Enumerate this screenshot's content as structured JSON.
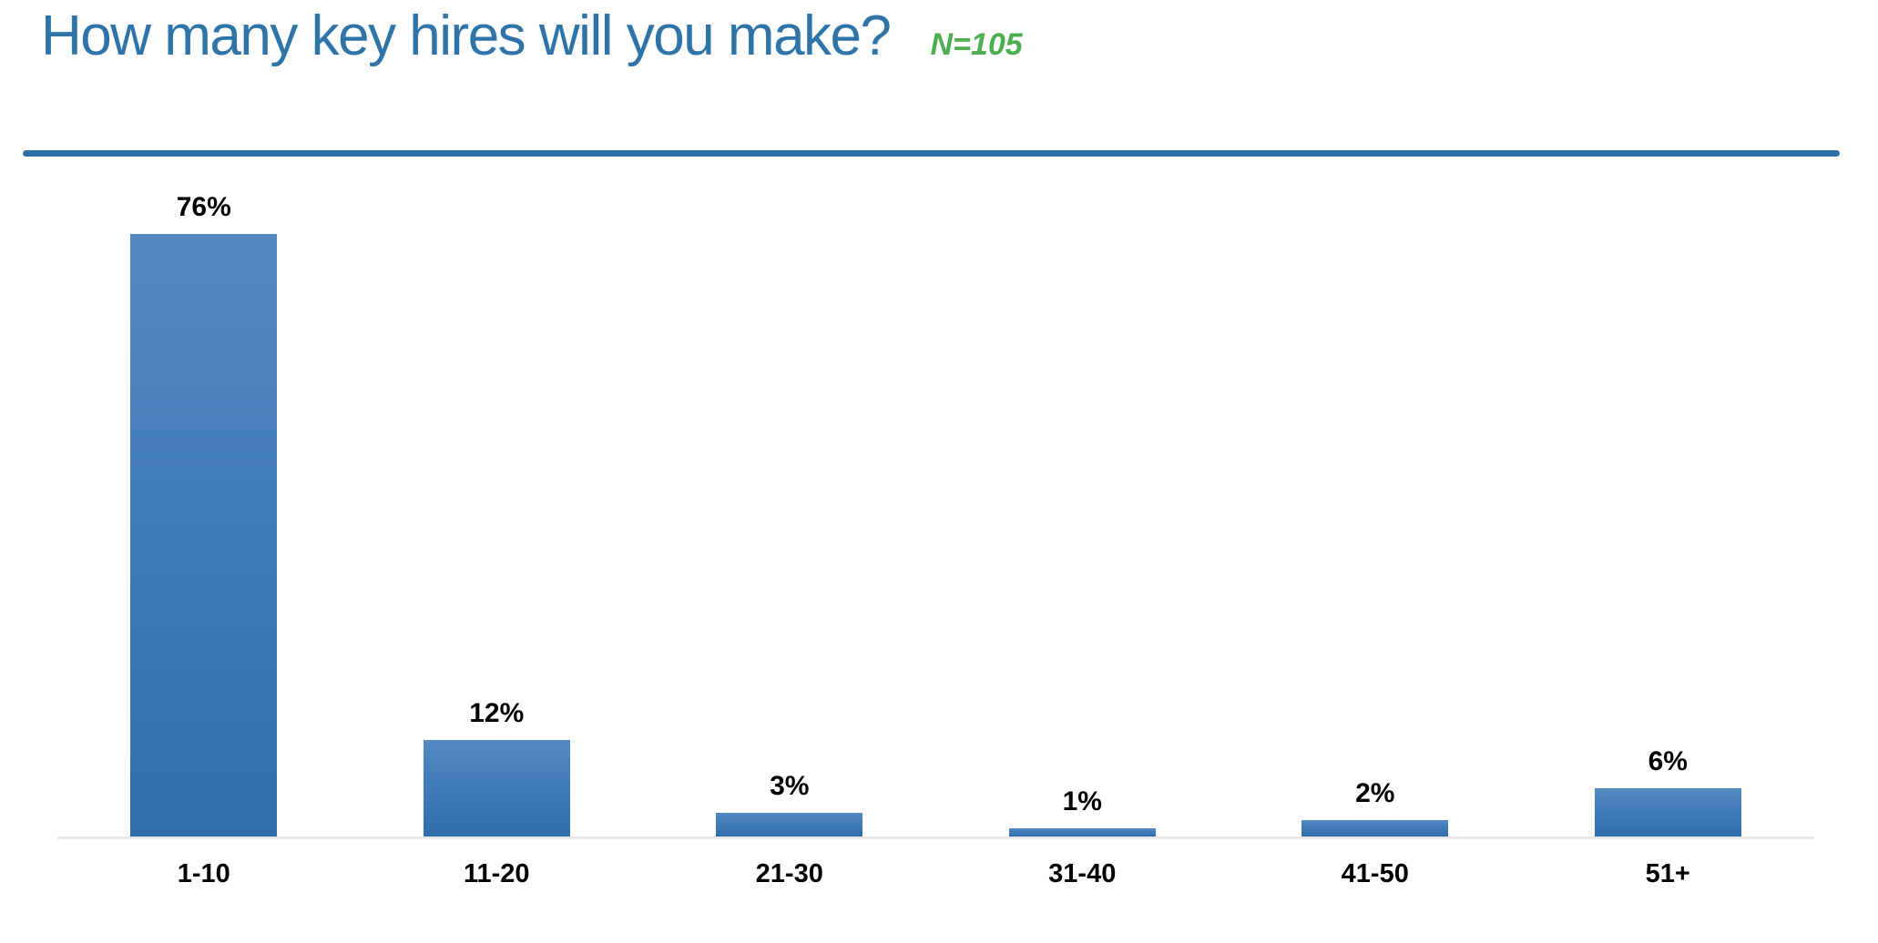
{
  "header": {
    "title": "How many key hires will you make?",
    "sample_note": "N=105"
  },
  "colors": {
    "title_blue": "#2E74A9",
    "divider_blue": "#2E6FA8",
    "sample_note_green": "#4BAE4F",
    "bar_gradient_top": "#5289C1",
    "bar_gradient_bottom": "#2F6DAB",
    "axis_line": "#E8E8E8",
    "label_black": "#000000"
  },
  "chart_data": {
    "type": "bar",
    "title": "How many key hires will you make?",
    "annotation": "N=105",
    "categories": [
      "1-10",
      "11-20",
      "21-30",
      "31-40",
      "41-50",
      "51+"
    ],
    "values": [
      76,
      12,
      3,
      1,
      2,
      6
    ],
    "value_labels": [
      "76%",
      "12%",
      "3%",
      "1%",
      "2%",
      "6%"
    ],
    "xlabel": "",
    "ylabel": "",
    "ylim": [
      0,
      80
    ],
    "grid": false,
    "legend": false,
    "data_labels_position": "above bars",
    "baseline_axis": "x-axis only, light gray"
  }
}
